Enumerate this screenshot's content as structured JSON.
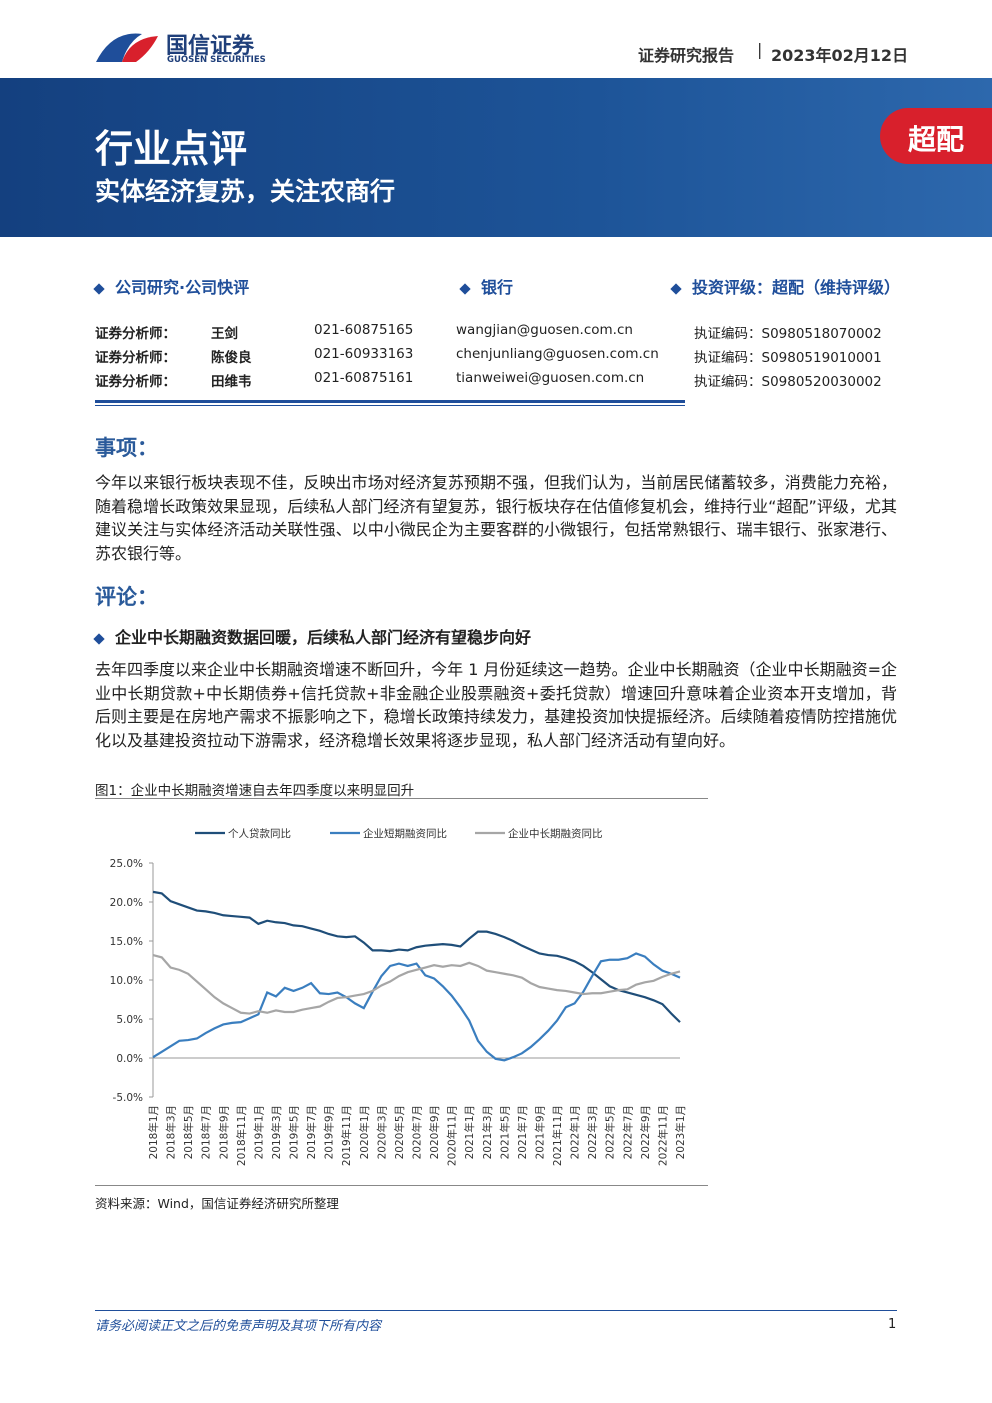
{
  "header": {
    "brand": "国信证券",
    "brand_en": "GUOSEN SECURITIES",
    "report_type": "证券研究报告",
    "date": "2023年02月12日"
  },
  "banner": {
    "category": "行业点评",
    "title": "实体经济复苏，关注农商行",
    "rating": "超配"
  },
  "info": {
    "research": "公司研究·公司快评",
    "industry": "银行",
    "rating": "投资评级：超配（维持评级）"
  },
  "analysts": [
    [
      "证券分析师：",
      "王剑",
      "021-60875165",
      "wangjian@guosen.com.cn",
      "执证编码：S0980518070002"
    ],
    [
      "证券分析师：",
      "陈俊良",
      "021-60933163",
      "chenjunliang@guosen.com.cn",
      "执证编码：S0980519010001"
    ],
    [
      "证券分析师：",
      "田维韦",
      "021-60875161",
      "tianweiwei@guosen.com.cn",
      "执证编码：S0980520030002"
    ]
  ],
  "sections": [
    {
      "heading": "事项：",
      "paragraph": "今年以来银行板块表现不佳，反映出市场对经济复苏预期不强，但我们认为，当前居民储蓄较多，消费能力充裕，随着稳增长政策效果显现，后续私人部门经济有望复苏，银行板块存在估值修复机会，维持行业“超配”评级，尤其建议关注与实体经济活动关联性强、以中小微民企为主要客群的小微银行，包括常熟银行、瑞丰银行、张家港行、苏农银行等。"
    },
    {
      "heading": "评论：",
      "subheading": "企业中长期融资数据回暖，后续私人部门经济有望稳步向好",
      "paragraph": "去年四季度以来企业中长期融资增速不断回升，今年 1 月份延续这一趋势。企业中长期融资（企业中长期融资=企业中长期贷款+中长期债券+信托贷款+非金融企业股票融资+委托贷款）增速回升意味着企业资本开支增加，背后则主要是在房地产需求不振影响之下，稳增长政策持续发力，基建投资加快提振经济。后续随着疫情防控措施优化以及基建投资拉动下游需求，经济稳增长效果将逐步显现，私人部门经济活动有望向好。"
    }
  ],
  "figure": {
    "caption": "图1：企业中长期融资增速自去年四季度以来明显回升",
    "source": "资料来源：Wind，国信证券经济研究所整理",
    "chart_data": {
      "type": "line",
      "categories": [
        "2018年1月",
        null,
        "2018年3月",
        null,
        "2018年5月",
        null,
        "2018年7月",
        null,
        "2018年9月",
        null,
        "2018年11月",
        null,
        "2019年1月",
        null,
        "2019年3月",
        null,
        "2019年5月",
        null,
        "2019年7月",
        null,
        "2019年9月",
        null,
        "2019年11月",
        null,
        "2020年1月",
        null,
        "2020年3月",
        null,
        "2020年5月",
        null,
        "2020年7月",
        null,
        "2020年9月",
        null,
        "2020年11月",
        null,
        "2021年1月",
        null,
        "2021年3月",
        null,
        "2021年5月",
        null,
        "2021年7月",
        null,
        "2021年9月",
        null,
        "2021年11月",
        null,
        "2022年1月",
        null,
        "2022年3月",
        null,
        "2022年5月",
        null,
        "2022年7月",
        null,
        "2022年9月",
        null,
        "2022年11月",
        null,
        "2023年1月"
      ],
      "series": [
        {
          "name": "个人贷款同比",
          "color": "#1f4e79",
          "values": [
            21.3,
            21.1,
            20.1,
            19.7,
            19.3,
            18.9,
            18.8,
            18.6,
            18.3,
            18.2,
            18.1,
            18.0,
            17.2,
            17.6,
            17.4,
            17.3,
            17.0,
            16.9,
            16.6,
            16.3,
            15.9,
            15.6,
            15.5,
            15.6,
            14.8,
            13.8,
            13.8,
            13.7,
            13.9,
            13.8,
            14.2,
            14.4,
            14.5,
            14.6,
            14.5,
            14.3,
            15.3,
            16.2,
            16.2,
            15.9,
            15.5,
            15.0,
            14.4,
            13.9,
            13.4,
            13.2,
            13.1,
            12.8,
            12.4,
            11.8,
            11.0,
            10.1,
            9.2,
            8.7,
            8.4,
            8.1,
            7.8,
            7.4,
            6.9,
            5.7,
            4.6
          ]
        },
        {
          "name": "企业短期融资同比",
          "color": "#3a7ebf",
          "values": [
            0.1,
            0.8,
            1.5,
            2.2,
            2.3,
            2.5,
            3.2,
            3.8,
            4.3,
            4.5,
            4.6,
            5.1,
            5.6,
            8.4,
            7.9,
            9.0,
            8.6,
            9.0,
            9.6,
            8.3,
            8.2,
            8.4,
            7.8,
            7.0,
            6.4,
            8.5,
            10.5,
            11.8,
            12.1,
            11.8,
            12.1,
            10.6,
            10.2,
            9.2,
            8.0,
            6.5,
            4.8,
            2.2,
            0.8,
            -0.1,
            -0.3,
            0.1,
            0.6,
            1.4,
            2.4,
            3.5,
            4.8,
            6.5,
            7.0,
            8.5,
            10.5,
            12.4,
            12.6,
            12.6,
            12.8,
            13.4,
            13.0,
            12.0,
            11.2,
            10.8,
            10.3
          ]
        },
        {
          "name": "企业中长期融资同比",
          "color": "#a6a6a6",
          "values": [
            13.2,
            12.9,
            11.6,
            11.3,
            10.8,
            9.8,
            8.8,
            7.8,
            7.0,
            6.4,
            5.8,
            5.7,
            6.0,
            5.8,
            6.1,
            5.9,
            5.9,
            6.2,
            6.4,
            6.6,
            7.2,
            7.7,
            7.8,
            8.0,
            8.2,
            8.6,
            9.3,
            9.8,
            10.5,
            11.0,
            11.3,
            11.6,
            11.9,
            11.7,
            11.9,
            11.8,
            12.2,
            11.8,
            11.2,
            11.0,
            10.8,
            10.6,
            10.3,
            9.6,
            9.1,
            8.9,
            8.7,
            8.6,
            8.4,
            8.2,
            8.3,
            8.3,
            8.5,
            8.7,
            8.8,
            9.4,
            9.7,
            9.9,
            10.4,
            10.8,
            11.1
          ]
        }
      ],
      "ylim": [
        -5,
        25
      ],
      "yticks": [
        {
          "value": -5,
          "label": "-5.0%"
        },
        {
          "value": 0,
          "label": "0.0%"
        },
        {
          "value": 5,
          "label": "5.0%"
        },
        {
          "value": 10,
          "label": "10.0%"
        },
        {
          "value": 15,
          "label": "15.0%"
        },
        {
          "value": 20,
          "label": "20.0%"
        },
        {
          "value": 25,
          "label": "25.0%"
        }
      ],
      "grid": false,
      "legend": "top"
    }
  },
  "footer": {
    "disclaimer": "请务必阅读正文之后的免责声明及其项下所有内容",
    "page": "1"
  }
}
